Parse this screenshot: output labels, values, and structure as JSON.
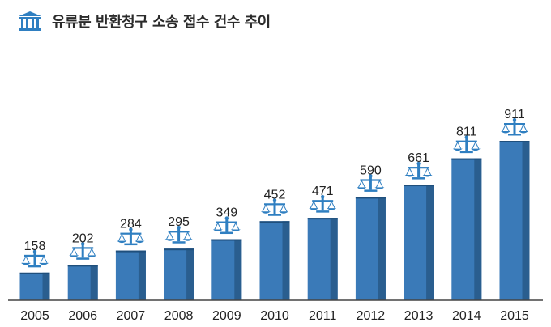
{
  "header": {
    "title": "유류분 반환청구 소송 접수 건수 추이",
    "icon": "courthouse-icon"
  },
  "colors": {
    "bar_front": "#3a7ab8",
    "bar_side": "#2a5e8f",
    "icon": "#2f7fc1"
  },
  "chart_data": {
    "type": "bar",
    "title": "유류분 반환청구 소송 접수 건수 추이",
    "categories": [
      "2005",
      "2006",
      "2007",
      "2008",
      "2009",
      "2010",
      "2011",
      "2012",
      "2013",
      "2014",
      "2015"
    ],
    "values": [
      158,
      202,
      284,
      295,
      349,
      452,
      471,
      590,
      661,
      811,
      911
    ],
    "bar_icon": "scales-icon",
    "grid": false
  }
}
